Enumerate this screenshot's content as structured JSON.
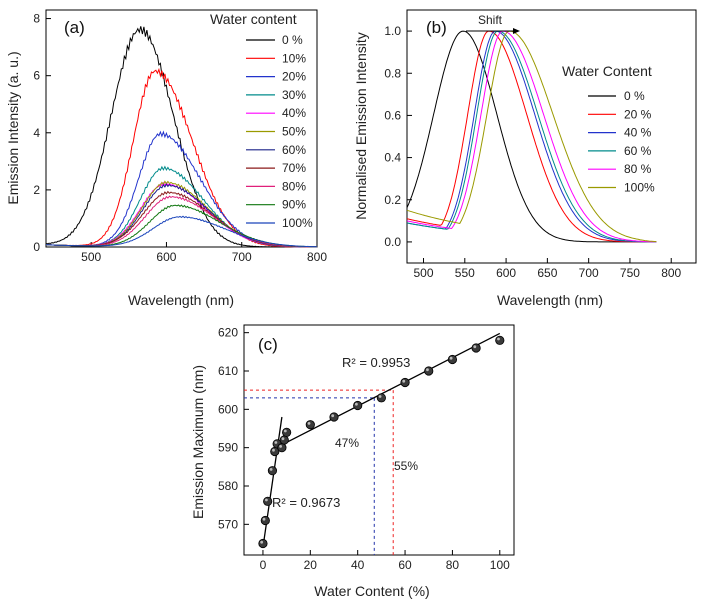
{
  "chart_data": [
    {
      "panel": "(a)",
      "type": "line",
      "xlabel": "Wavelength (nm)",
      "ylabel": "Emission Intensity (a. u.)",
      "xlim": [
        440,
        800
      ],
      "ylim": [
        0,
        8.3
      ],
      "xticks": [
        500,
        600,
        700,
        800
      ],
      "yticks": [
        0,
        2,
        4,
        6,
        8
      ],
      "legend_title": "Water content",
      "legend_position": "top-right",
      "series": [
        {
          "name": "0 %",
          "color": "#000000",
          "peak": 565,
          "height": 7.6,
          "hwL": 45,
          "hwR": 52,
          "lineStyle": "solid"
        },
        {
          "name": "10%",
          "color": "#ff0000",
          "peak": 585,
          "height": 6.15,
          "hwL": 34,
          "hwR": 58,
          "lineStyle": "solid"
        },
        {
          "name": "20%",
          "color": "#2233cc",
          "peak": 592,
          "height": 3.95,
          "hwL": 34,
          "hwR": 62,
          "lineStyle": "solid"
        },
        {
          "name": "30%",
          "color": "#008b8b",
          "peak": 596,
          "height": 2.75,
          "hwL": 36,
          "hwR": 62,
          "lineStyle": "solid"
        },
        {
          "name": "40%",
          "color": "#ff00ff",
          "peak": 598,
          "height": 2.2,
          "hwL": 38,
          "hwR": 64,
          "lineStyle": "solid"
        },
        {
          "name": "50%",
          "color": "#9a9a00",
          "peak": 600,
          "height": 2.25,
          "hwL": 38,
          "hwR": 64,
          "lineStyle": "solid"
        },
        {
          "name": "60%",
          "color": "#1a2288",
          "peak": 601,
          "height": 2.15,
          "hwL": 38,
          "hwR": 64,
          "lineStyle": "solid"
        },
        {
          "name": "70%",
          "color": "#8b1a1a",
          "peak": 603,
          "height": 1.9,
          "hwL": 40,
          "hwR": 66,
          "lineStyle": "solid"
        },
        {
          "name": "80%",
          "color": "#e0207a",
          "peak": 606,
          "height": 1.75,
          "hwL": 40,
          "hwR": 66,
          "lineStyle": "solid"
        },
        {
          "name": "90%",
          "color": "#117711",
          "peak": 612,
          "height": 1.45,
          "hwL": 40,
          "hwR": 68,
          "lineStyle": "solid"
        },
        {
          "name": "100%",
          "color": "#1a44bb",
          "peak": 618,
          "height": 1.05,
          "hwL": 42,
          "hwR": 70,
          "lineStyle": "solid"
        }
      ]
    },
    {
      "panel": "(b)",
      "type": "line",
      "xlabel": "Wavelength (nm)",
      "ylabel": "Normalised Emission Intensity",
      "xlim": [
        480,
        830
      ],
      "ylim": [
        -0.1,
        1.1
      ],
      "xticks": [
        500,
        550,
        600,
        650,
        700,
        750,
        800
      ],
      "yticks": [
        0.0,
        0.2,
        0.4,
        0.6,
        0.8,
        1.0
      ],
      "annotation": "Shift",
      "legend_title": "Water Content",
      "legend_position": "right",
      "series": [
        {
          "name": "0 %",
          "color": "#000000",
          "peak": 548,
          "hwL": 42,
          "hwR": 48,
          "base": 0.12
        },
        {
          "name": "20 %",
          "color": "#ff0000",
          "peak": 579,
          "hwL": 30,
          "hwR": 54,
          "base": 0.11
        },
        {
          "name": "40 %",
          "color": "#2233cc",
          "peak": 587,
          "hwL": 30,
          "hwR": 56,
          "base": 0.09
        },
        {
          "name": "60 %",
          "color": "#008b8b",
          "peak": 590,
          "hwL": 30,
          "hwR": 57,
          "base": 0.09
        },
        {
          "name": "80 %",
          "color": "#ff00ff",
          "peak": 596,
          "hwL": 31,
          "hwR": 58,
          "base": 0.1
        },
        {
          "name": "100%",
          "color": "#9a9a00",
          "peak": 604,
          "hwL": 32,
          "hwR": 62,
          "base": 0.15
        }
      ]
    },
    {
      "panel": "(c)",
      "type": "scatter",
      "xlabel": "Water Content (%)",
      "ylabel": "Emission Maximum (nm)",
      "xlim": [
        -8,
        106
      ],
      "ylim": [
        562,
        622
      ],
      "xticks": [
        0,
        20,
        40,
        60,
        80,
        100
      ],
      "yticks": [
        570,
        580,
        590,
        600,
        610,
        620
      ],
      "x": [
        0,
        1,
        2,
        4,
        5,
        6,
        8,
        9,
        10,
        20,
        30,
        40,
        50,
        60,
        70,
        80,
        90,
        100
      ],
      "y": [
        565,
        571,
        576,
        584,
        589,
        591,
        590,
        592,
        594,
        596,
        598,
        601,
        603,
        607,
        610,
        613,
        616,
        618
      ],
      "fits": [
        {
          "label": "R² = 0.9673",
          "x": [
            0,
            8
          ],
          "y": [
            564,
            598
          ]
        },
        {
          "label": "R² = 0.9953",
          "x": [
            5,
            100
          ],
          "y": [
            589.8,
            619.8
          ]
        }
      ],
      "guides": [
        {
          "label": "47%",
          "x": 47,
          "y": 603,
          "color": "#2233aa"
        },
        {
          "label": "55%",
          "x": 55,
          "y": 605,
          "color": "#ee2222"
        }
      ]
    }
  ]
}
